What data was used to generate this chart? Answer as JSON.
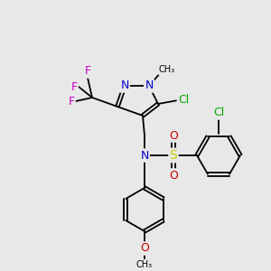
{
  "bg_color": "#e8e8e8",
  "atom_colors": {
    "C": "#000000",
    "N": "#0000cc",
    "O": "#cc0000",
    "F": "#cc00cc",
    "S": "#cccc00",
    "Cl": "#00aa00",
    "H": "#000000"
  },
  "bond_color": "#000000",
  "font_size_label": 7,
  "fig_width": 3.0,
  "fig_height": 3.0,
  "dpi": 100
}
